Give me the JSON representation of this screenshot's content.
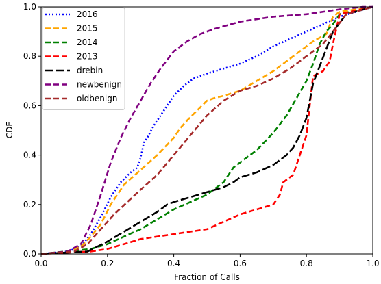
{
  "chart_data": {
    "type": "line",
    "title": "",
    "xlabel": "Fraction of Calls",
    "ylabel": "CDF",
    "xlim": [
      0.0,
      1.0
    ],
    "ylim": [
      0.0,
      1.0
    ],
    "xticks": [
      "0.0",
      "0.2",
      "0.4",
      "0.6",
      "0.8",
      "1.0"
    ],
    "yticks": [
      "0.0",
      "0.2",
      "0.4",
      "0.6",
      "0.8",
      "1.0"
    ],
    "grid": false,
    "legend_position": "top-left",
    "series": [
      {
        "name": "2016",
        "color": "#0000ff",
        "dash": "dotted",
        "x": [
          0.0,
          0.08,
          0.12,
          0.15,
          0.18,
          0.21,
          0.24,
          0.27,
          0.29,
          0.3,
          0.31,
          0.32,
          0.34,
          0.37,
          0.4,
          0.43,
          0.46,
          0.5,
          0.55,
          0.6,
          0.65,
          0.7,
          0.75,
          0.8,
          0.85,
          0.9,
          1.0
        ],
        "y": [
          0.0,
          0.01,
          0.03,
          0.08,
          0.15,
          0.23,
          0.29,
          0.33,
          0.35,
          0.39,
          0.45,
          0.47,
          0.52,
          0.58,
          0.64,
          0.68,
          0.71,
          0.73,
          0.75,
          0.77,
          0.8,
          0.84,
          0.87,
          0.9,
          0.93,
          0.96,
          1.0
        ]
      },
      {
        "name": "2015",
        "color": "#ffa500",
        "dash": "dashed",
        "x": [
          0.0,
          0.08,
          0.12,
          0.15,
          0.18,
          0.21,
          0.25,
          0.3,
          0.35,
          0.4,
          0.42,
          0.44,
          0.47,
          0.5,
          0.52,
          0.55,
          0.6,
          0.65,
          0.7,
          0.74,
          0.78,
          0.82,
          0.86,
          0.88,
          0.9,
          1.0
        ],
        "y": [
          0.0,
          0.01,
          0.03,
          0.07,
          0.12,
          0.2,
          0.28,
          0.34,
          0.4,
          0.47,
          0.51,
          0.54,
          0.58,
          0.62,
          0.63,
          0.64,
          0.66,
          0.7,
          0.74,
          0.78,
          0.82,
          0.86,
          0.89,
          0.96,
          0.98,
          1.0
        ]
      },
      {
        "name": "2014",
        "color": "#008000",
        "dash": "dashed",
        "x": [
          0.0,
          0.15,
          0.2,
          0.25,
          0.3,
          0.35,
          0.4,
          0.45,
          0.5,
          0.55,
          0.58,
          0.6,
          0.65,
          0.7,
          0.74,
          0.77,
          0.8,
          0.82,
          0.84,
          0.86,
          0.88,
          0.9,
          1.0
        ],
        "y": [
          0.0,
          0.02,
          0.04,
          0.07,
          0.1,
          0.14,
          0.18,
          0.21,
          0.24,
          0.29,
          0.35,
          0.37,
          0.42,
          0.49,
          0.56,
          0.63,
          0.7,
          0.77,
          0.85,
          0.9,
          0.93,
          0.97,
          1.0
        ]
      },
      {
        "name": "2013",
        "color": "#ff0000",
        "dash": "dashed",
        "x": [
          0.0,
          0.15,
          0.2,
          0.25,
          0.3,
          0.4,
          0.5,
          0.55,
          0.6,
          0.65,
          0.7,
          0.72,
          0.73,
          0.74,
          0.76,
          0.78,
          0.8,
          0.81,
          0.82,
          0.85,
          0.87,
          0.88,
          0.9,
          1.0
        ],
        "y": [
          0.0,
          0.01,
          0.02,
          0.04,
          0.06,
          0.08,
          0.1,
          0.13,
          0.16,
          0.18,
          0.2,
          0.24,
          0.29,
          0.3,
          0.32,
          0.4,
          0.48,
          0.6,
          0.72,
          0.74,
          0.78,
          0.85,
          0.97,
          1.0
        ]
      },
      {
        "name": "drebin",
        "color": "#000000",
        "dash": "longdash",
        "x": [
          0.0,
          0.14,
          0.2,
          0.25,
          0.3,
          0.35,
          0.38,
          0.4,
          0.45,
          0.5,
          0.55,
          0.58,
          0.6,
          0.65,
          0.7,
          0.74,
          0.76,
          0.78,
          0.8,
          0.81,
          0.82,
          0.84,
          0.86,
          0.88,
          0.92,
          1.0
        ],
        "y": [
          0.0,
          0.01,
          0.05,
          0.09,
          0.13,
          0.17,
          0.2,
          0.21,
          0.23,
          0.25,
          0.27,
          0.29,
          0.31,
          0.33,
          0.36,
          0.4,
          0.43,
          0.48,
          0.55,
          0.62,
          0.69,
          0.76,
          0.83,
          0.9,
          0.97,
          1.0
        ]
      },
      {
        "name": "newbenign",
        "color": "#800080",
        "dash": "dashed",
        "x": [
          0.0,
          0.08,
          0.12,
          0.15,
          0.18,
          0.21,
          0.24,
          0.27,
          0.3,
          0.33,
          0.36,
          0.4,
          0.44,
          0.48,
          0.52,
          0.56,
          0.6,
          0.7,
          0.8,
          0.9,
          0.97,
          1.0
        ],
        "y": [
          0.0,
          0.01,
          0.04,
          0.12,
          0.24,
          0.37,
          0.47,
          0.55,
          0.62,
          0.69,
          0.75,
          0.82,
          0.86,
          0.89,
          0.91,
          0.925,
          0.94,
          0.96,
          0.97,
          0.99,
          1.0,
          1.0
        ]
      },
      {
        "name": "oldbenign",
        "color": "#a52a2a",
        "dash": "dashed",
        "x": [
          0.0,
          0.1,
          0.14,
          0.18,
          0.22,
          0.26,
          0.3,
          0.35,
          0.4,
          0.45,
          0.5,
          0.55,
          0.6,
          0.65,
          0.7,
          0.75,
          0.8,
          0.85,
          0.88,
          0.92,
          1.0
        ],
        "y": [
          0.0,
          0.01,
          0.04,
          0.1,
          0.16,
          0.21,
          0.26,
          0.32,
          0.4,
          0.48,
          0.56,
          0.62,
          0.66,
          0.68,
          0.71,
          0.75,
          0.8,
          0.85,
          0.9,
          0.97,
          1.0
        ]
      }
    ]
  }
}
